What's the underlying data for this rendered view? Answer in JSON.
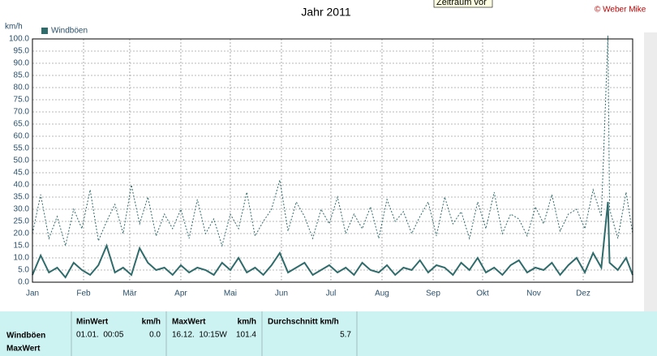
{
  "window": {
    "tooltip": "Zeitraum vor",
    "copyright": "© Weber Mike"
  },
  "chart_data": {
    "type": "line",
    "title": "Jahr 2011",
    "y_label": "km/h",
    "x": [
      1,
      6,
      11,
      16,
      21,
      26,
      31,
      36,
      41,
      46,
      51,
      56,
      61,
      66,
      71,
      76,
      81,
      86,
      91,
      96,
      101,
      106,
      111,
      116,
      121,
      126,
      131,
      136,
      141,
      146,
      151,
      156,
      161,
      166,
      171,
      176,
      181,
      186,
      191,
      196,
      201,
      206,
      211,
      216,
      221,
      226,
      231,
      236,
      241,
      246,
      251,
      256,
      261,
      266,
      271,
      276,
      281,
      286,
      291,
      296,
      301,
      306,
      311,
      316,
      321,
      326,
      331,
      336,
      341,
      346,
      350,
      351,
      356,
      361,
      365
    ],
    "xlim": [
      1,
      365
    ],
    "xticks": [
      {
        "value": 1,
        "label": "Jan"
      },
      {
        "value": 32,
        "label": "Feb"
      },
      {
        "value": 60,
        "label": "Mär"
      },
      {
        "value": 91,
        "label": "Apr"
      },
      {
        "value": 121,
        "label": "Mai"
      },
      {
        "value": 152,
        "label": "Jun"
      },
      {
        "value": 182,
        "label": "Jul"
      },
      {
        "value": 213,
        "label": "Aug"
      },
      {
        "value": 244,
        "label": "Sep"
      },
      {
        "value": 274,
        "label": "Okt"
      },
      {
        "value": 305,
        "label": "Nov"
      },
      {
        "value": 335,
        "label": "Dez"
      }
    ],
    "ylim": [
      0,
      100
    ],
    "yticks": [
      {
        "value": 0,
        "label": "0.0"
      },
      {
        "value": 5,
        "label": "5.0"
      },
      {
        "value": 10,
        "label": "10.0"
      },
      {
        "value": 15,
        "label": "15.0"
      },
      {
        "value": 20,
        "label": "20.0"
      },
      {
        "value": 25,
        "label": "25.0"
      },
      {
        "value": 30,
        "label": "30.0"
      },
      {
        "value": 35,
        "label": "35.0"
      },
      {
        "value": 40,
        "label": "40.0"
      },
      {
        "value": 45,
        "label": "45.0"
      },
      {
        "value": 50,
        "label": "50.0"
      },
      {
        "value": 55,
        "label": "55.0"
      },
      {
        "value": 60,
        "label": "60.0"
      },
      {
        "value": 65,
        "label": "65.0"
      },
      {
        "value": 70,
        "label": "70.0"
      },
      {
        "value": 75,
        "label": "75.0"
      },
      {
        "value": 80,
        "label": "80.0"
      },
      {
        "value": 85,
        "label": "85.0"
      },
      {
        "value": 90,
        "label": "90.0"
      },
      {
        "value": 95,
        "label": "95.0"
      },
      {
        "value": 100,
        "label": "100.0"
      }
    ],
    "grid": true,
    "series": [
      {
        "name": "Windböen",
        "color": "#2f6b6b",
        "style": "solid",
        "values": [
          3,
          11,
          4,
          6,
          2,
          8,
          5,
          3,
          7,
          15,
          4,
          6,
          3,
          14,
          8,
          5,
          6,
          3,
          7,
          4,
          6,
          5,
          3,
          8,
          5,
          10,
          4,
          6,
          3,
          7,
          12,
          4,
          6,
          8,
          3,
          5,
          7,
          4,
          6,
          3,
          8,
          5,
          4,
          7,
          3,
          6,
          5,
          9,
          4,
          7,
          6,
          3,
          8,
          5,
          10,
          4,
          6,
          3,
          7,
          9,
          4,
          6,
          5,
          8,
          3,
          7,
          10,
          4,
          12,
          6,
          33,
          8,
          5,
          10,
          3
        ]
      },
      {
        "color": "#2f6b6b",
        "style": "dashed",
        "values": [
          20,
          36,
          18,
          27,
          15,
          30,
          22,
          38,
          17,
          25,
          32,
          20,
          40,
          24,
          35,
          19,
          28,
          22,
          30,
          18,
          34,
          20,
          26,
          15,
          28,
          22,
          37,
          19,
          25,
          30,
          42,
          21,
          33,
          27,
          18,
          30,
          24,
          35,
          20,
          28,
          22,
          31,
          18,
          34,
          25,
          29,
          20,
          27,
          33,
          19,
          35,
          24,
          29,
          18,
          33,
          22,
          37,
          20,
          28,
          26,
          19,
          31,
          24,
          36,
          21,
          28,
          30,
          22,
          38,
          27,
          101.4,
          30,
          18,
          37,
          20
        ]
      }
    ]
  },
  "table": {
    "header": [
      "MinWert",
      "km/h",
      "MaxWert",
      "km/h",
      "Durchschnitt km/h"
    ],
    "rows": [
      [
        "Windböen",
        "01.01.  00:05",
        "0.0",
        "16.12.  10:15W",
        "101.4",
        "5.7"
      ],
      [
        "MaxWert"
      ]
    ]
  }
}
